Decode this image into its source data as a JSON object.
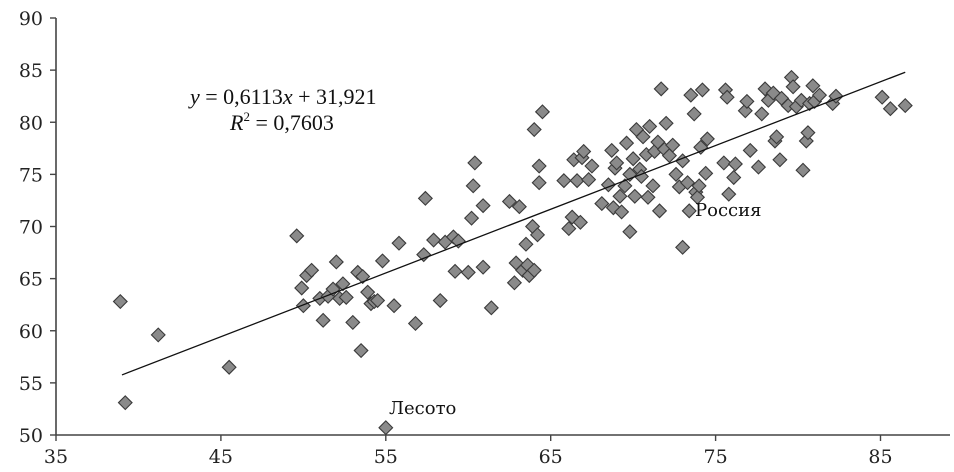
{
  "chart_data": {
    "type": "scatter",
    "title": "",
    "xlabel": "",
    "ylabel": "",
    "xlim": [
      35,
      90
    ],
    "ylim": [
      50,
      90
    ],
    "xticks": [
      35,
      45,
      55,
      65,
      75,
      85
    ],
    "yticks": [
      50,
      55,
      60,
      65,
      70,
      75,
      80,
      85,
      90
    ],
    "grid": false,
    "colors": {
      "marker_fill": "#8a8a8a",
      "marker_stroke": "#3a3a3a",
      "line": "#111111"
    },
    "trendline": {
      "slope": 0.6113,
      "intercept": 31.921,
      "x_range": [
        39,
        86.5
      ]
    },
    "equation": {
      "line1_lhs": "y",
      "line1_rhs": " = 0,6113",
      "line1_var": "x",
      "line1_tail": " + 31,921",
      "line2_var": "R",
      "line2_sup": "2",
      "line2_tail": " = 0,7603"
    },
    "annotations": [
      {
        "text": "Россия",
        "x": 74,
        "y": 71.5
      },
      {
        "text": "Лесото",
        "x": 55,
        "y": 52.2
      }
    ],
    "points": [
      [
        38.9,
        62.8
      ],
      [
        39.2,
        53.1
      ],
      [
        41.2,
        59.6
      ],
      [
        45.5,
        56.5
      ],
      [
        55,
        50.7
      ],
      [
        49.6,
        69.1
      ],
      [
        49.9,
        64.1
      ],
      [
        50,
        62.4
      ],
      [
        50.2,
        65.3
      ],
      [
        50.5,
        65.8
      ],
      [
        51,
        63.1
      ],
      [
        51.2,
        61
      ],
      [
        51.5,
        63.3
      ],
      [
        51.8,
        64
      ],
      [
        52,
        66.6
      ],
      [
        52.2,
        63.1
      ],
      [
        52.4,
        64.5
      ],
      [
        52.6,
        63.2
      ],
      [
        53,
        60.8
      ],
      [
        53.3,
        65.6
      ],
      [
        53.6,
        65.2
      ],
      [
        53.5,
        58.1
      ],
      [
        53.9,
        63.7
      ],
      [
        54.1,
        62.6
      ],
      [
        54.3,
        62.8
      ],
      [
        54.5,
        62.9
      ],
      [
        54.8,
        66.7
      ],
      [
        55.5,
        62.4
      ],
      [
        55.8,
        68.4
      ],
      [
        56.8,
        60.7
      ],
      [
        57.3,
        67.3
      ],
      [
        57.4,
        72.7
      ],
      [
        57.9,
        68.7
      ],
      [
        58.3,
        62.9
      ],
      [
        58.6,
        68.5
      ],
      [
        59.1,
        69
      ],
      [
        59.2,
        65.7
      ],
      [
        59.4,
        68.6
      ],
      [
        60,
        65.6
      ],
      [
        60.2,
        70.8
      ],
      [
        60.3,
        73.9
      ],
      [
        60.4,
        76.1
      ],
      [
        60.9,
        66.1
      ],
      [
        60.9,
        72
      ],
      [
        61.4,
        62.2
      ],
      [
        62.5,
        72.4
      ],
      [
        62.8,
        64.6
      ],
      [
        62.9,
        66.5
      ],
      [
        63.1,
        71.9
      ],
      [
        63.3,
        65.8
      ],
      [
        63.5,
        68.3
      ],
      [
        63.6,
        66.3
      ],
      [
        63.7,
        65.3
      ],
      [
        63.9,
        70
      ],
      [
        64,
        65.8
      ],
      [
        64,
        79.3
      ],
      [
        64.2,
        69.2
      ],
      [
        64.3,
        74.2
      ],
      [
        64.3,
        75.8
      ],
      [
        64.5,
        81
      ],
      [
        65.8,
        74.4
      ],
      [
        66.1,
        69.8
      ],
      [
        66.3,
        70.9
      ],
      [
        66.4,
        76.4
      ],
      [
        66.6,
        74.4
      ],
      [
        66.8,
        70.4
      ],
      [
        66.9,
        76.6
      ],
      [
        67,
        77.2
      ],
      [
        67.3,
        74.5
      ],
      [
        67.5,
        75.8
      ],
      [
        68.1,
        72.2
      ],
      [
        68.5,
        74
      ],
      [
        68.7,
        77.3
      ],
      [
        68.8,
        71.8
      ],
      [
        68.9,
        75.6
      ],
      [
        69,
        76.1
      ],
      [
        69.2,
        72.9
      ],
      [
        69.3,
        71.4
      ],
      [
        69.5,
        73.9
      ],
      [
        69.6,
        78
      ],
      [
        69.8,
        75
      ],
      [
        69.8,
        69.5
      ],
      [
        70,
        76.5
      ],
      [
        70.1,
        72.9
      ],
      [
        70.2,
        79.3
      ],
      [
        70.4,
        75.5
      ],
      [
        70.5,
        74.8
      ],
      [
        70.6,
        78.6
      ],
      [
        70.8,
        76.9
      ],
      [
        70.9,
        72.8
      ],
      [
        71,
        79.6
      ],
      [
        71.2,
        73.9
      ],
      [
        71.3,
        77.2
      ],
      [
        71.5,
        78.1
      ],
      [
        71.6,
        71.5
      ],
      [
        71.7,
        83.2
      ],
      [
        71.9,
        77.4
      ],
      [
        72,
        79.9
      ],
      [
        72.2,
        76.8
      ],
      [
        72.4,
        77.8
      ],
      [
        72.6,
        75
      ],
      [
        72.8,
        73.8
      ],
      [
        73,
        76.3
      ],
      [
        73,
        68
      ],
      [
        73.3,
        74.2
      ],
      [
        73.4,
        71.5
      ],
      [
        73.5,
        82.6
      ],
      [
        73.7,
        80.8
      ],
      [
        73.8,
        73.3
      ],
      [
        73.9,
        72.8
      ],
      [
        74,
        73.9
      ],
      [
        74.1,
        77.6
      ],
      [
        74.2,
        83.1
      ],
      [
        74.4,
        75.1
      ],
      [
        74.5,
        78.4
      ],
      [
        75.5,
        76.1
      ],
      [
        75.6,
        83.1
      ],
      [
        75.7,
        82.4
      ],
      [
        75.8,
        73.1
      ],
      [
        76.1,
        74.7
      ],
      [
        76.2,
        76
      ],
      [
        76.8,
        81.1
      ],
      [
        76.9,
        82
      ],
      [
        77.1,
        77.3
      ],
      [
        77.6,
        75.7
      ],
      [
        77.8,
        80.8
      ],
      [
        78,
        83.2
      ],
      [
        78.2,
        82.1
      ],
      [
        78.5,
        82.8
      ],
      [
        78.6,
        78.2
      ],
      [
        78.7,
        78.6
      ],
      [
        78.9,
        76.4
      ],
      [
        79,
        82.3
      ],
      [
        79.4,
        81.6
      ],
      [
        79.6,
        84.3
      ],
      [
        79.7,
        83.4
      ],
      [
        79.9,
        81.5
      ],
      [
        80.2,
        82.1
      ],
      [
        80.3,
        75.4
      ],
      [
        80.5,
        78.2
      ],
      [
        80.6,
        79
      ],
      [
        80.7,
        81.8
      ],
      [
        80.9,
        83.5
      ],
      [
        81,
        82
      ],
      [
        81.3,
        82.6
      ],
      [
        82.1,
        81.8
      ],
      [
        82.3,
        82.5
      ],
      [
        85.1,
        82.4
      ],
      [
        85.6,
        81.3
      ],
      [
        86.5,
        81.6
      ]
    ]
  }
}
